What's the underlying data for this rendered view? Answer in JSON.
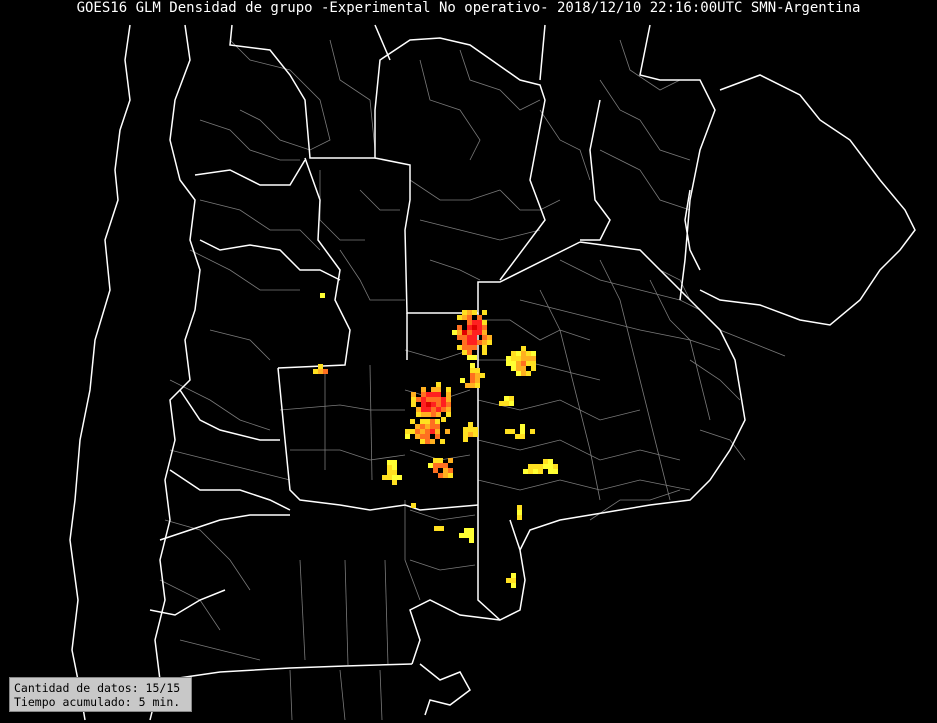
{
  "map": {
    "title": "GOES16 GLM Densidad de grupo -Experimental No operativo- 2018/12/10 22:16:00UTC SMN-Argentina",
    "region": "Argentina centro / Uruguay",
    "background_color": "#000000",
    "boundary_color": "#ffffff",
    "subdivision_color": "#808080",
    "density_colors": [
      "#ffff33",
      "#ffe020",
      "#ffb020",
      "#ff7020",
      "#ff2020",
      "#e00000"
    ]
  },
  "info_box": {
    "count_line": "Cantidad de datos: 15/15",
    "time_line": "Tiempo acumulado:  5 min."
  }
}
